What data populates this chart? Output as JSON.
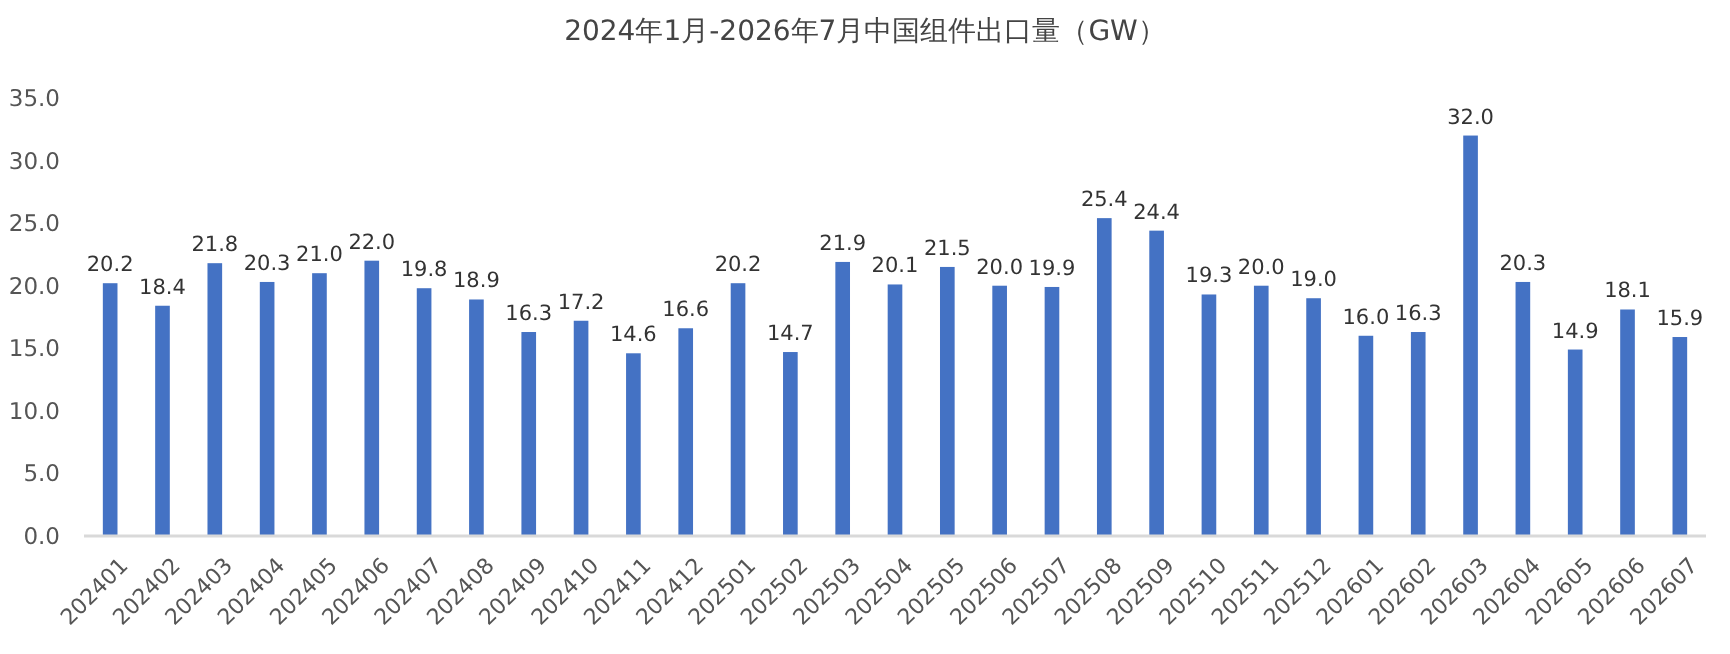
{
  "chart_data": {
    "type": "bar",
    "title": "2024年1月-2026年7月中国组件出口量（GW）",
    "categories": [
      "202401",
      "202402",
      "202403",
      "202404",
      "202405",
      "202406",
      "202407",
      "202408",
      "202409",
      "202410",
      "202411",
      "202412",
      "202501",
      "202502",
      "202503",
      "202504",
      "202505",
      "202506",
      "202507",
      "202508",
      "202509",
      "202510",
      "202511",
      "202512",
      "202601",
      "202602",
      "202603",
      "202604",
      "202605",
      "202606",
      "202607"
    ],
    "values": [
      20.2,
      18.4,
      21.8,
      20.3,
      21.0,
      22.0,
      19.8,
      18.9,
      16.3,
      17.2,
      14.6,
      16.6,
      20.2,
      14.7,
      21.9,
      20.1,
      21.5,
      20.0,
      19.9,
      25.4,
      24.4,
      19.3,
      20.0,
      19.0,
      16.0,
      16.3,
      32.0,
      20.3,
      14.9,
      18.1,
      15.9
    ],
    "value_labels": [
      "20.2",
      "18.4",
      "21.8",
      "20.3",
      "21.0",
      "22.0",
      "19.8",
      "18.9",
      "16.3",
      "17.2",
      "14.6",
      "16.6",
      "20.2",
      "14.7",
      "21.9",
      "20.1",
      "21.5",
      "20.0",
      "19.9",
      "25.4",
      "24.4",
      "19.3",
      "20.0",
      "19.0",
      "16.0",
      "16.3",
      "32.0",
      "20.3",
      "14.9",
      "18.1",
      "15.9"
    ],
    "color": "#4472c4",
    "ylim": [
      0,
      35
    ],
    "yticks": [
      {
        "value": 0,
        "label": "0.0"
      },
      {
        "value": 5,
        "label": "5.0"
      },
      {
        "value": 10,
        "label": "10.0"
      },
      {
        "value": 15,
        "label": "15.0"
      },
      {
        "value": 20,
        "label": "20.0"
      },
      {
        "value": 25,
        "label": "25.0"
      },
      {
        "value": 30,
        "label": "30.0"
      },
      {
        "value": 35,
        "label": "35.0"
      }
    ],
    "grid": false
  }
}
